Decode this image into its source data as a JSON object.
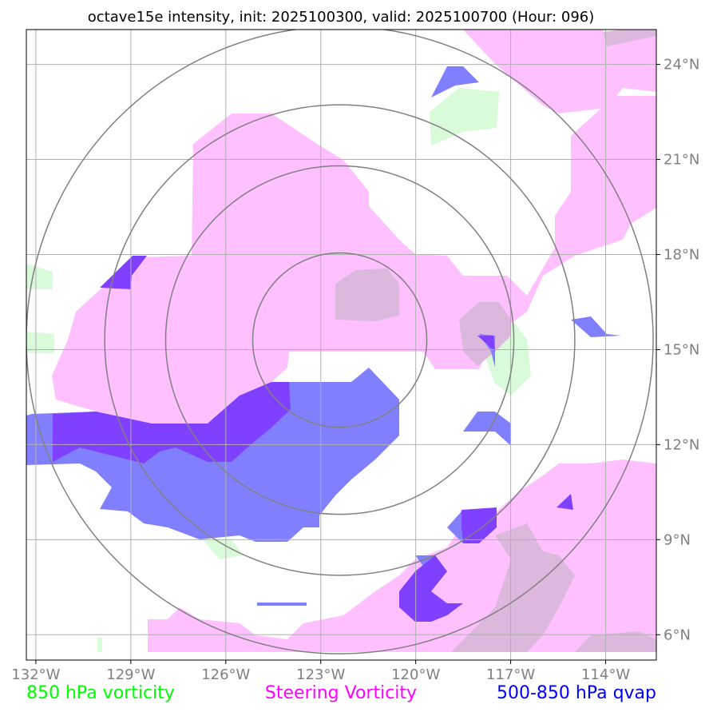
{
  "title": "octave15e intensity, init: 2025100300, valid: 2025100700 (Hour: 096)",
  "map": {
    "lon_range": [
      -132.3,
      -112.4
    ],
    "lat_range": [
      5.2,
      25.1
    ],
    "x_ticks": [
      {
        "lon": -132,
        "label": "132°W"
      },
      {
        "lon": -129,
        "label": "129°W"
      },
      {
        "lon": -126,
        "label": "126°W"
      },
      {
        "lon": -123,
        "label": "123°W"
      },
      {
        "lon": -120,
        "label": "120°W"
      },
      {
        "lon": -117,
        "label": "117°W"
      },
      {
        "lon": -114,
        "label": "114°W"
      }
    ],
    "y_ticks": [
      {
        "lat": 24,
        "label": "24°N"
      },
      {
        "lat": 21,
        "label": "21°N"
      },
      {
        "lat": 18,
        "label": "18°N"
      },
      {
        "lat": 15,
        "label": "15°N"
      },
      {
        "lat": 12,
        "label": "12°N"
      },
      {
        "lat": 9,
        "label": "9°N"
      },
      {
        "lat": 6,
        "label": "6°N"
      }
    ],
    "center": {
      "lon": -122.4,
      "lat": 15.3
    },
    "ring_count": 4,
    "grid": true,
    "colors": {
      "vorticity_850": "#d9fbd9",
      "steering_vorticity": "#ffc0ff",
      "qvap": "#8080ff",
      "overlap_purple": "#8040ff",
      "overlap_grey": "#dcb8dc",
      "rings": "#808080",
      "grid": "#b0b0b0"
    }
  },
  "legend": [
    {
      "label": "850 hPa vorticity",
      "color": "#00ff00"
    },
    {
      "label": "Steering Vorticity",
      "color": "#ff00ff"
    },
    {
      "label": "500-850 hPa qvap",
      "color": "#0000ff"
    }
  ]
}
